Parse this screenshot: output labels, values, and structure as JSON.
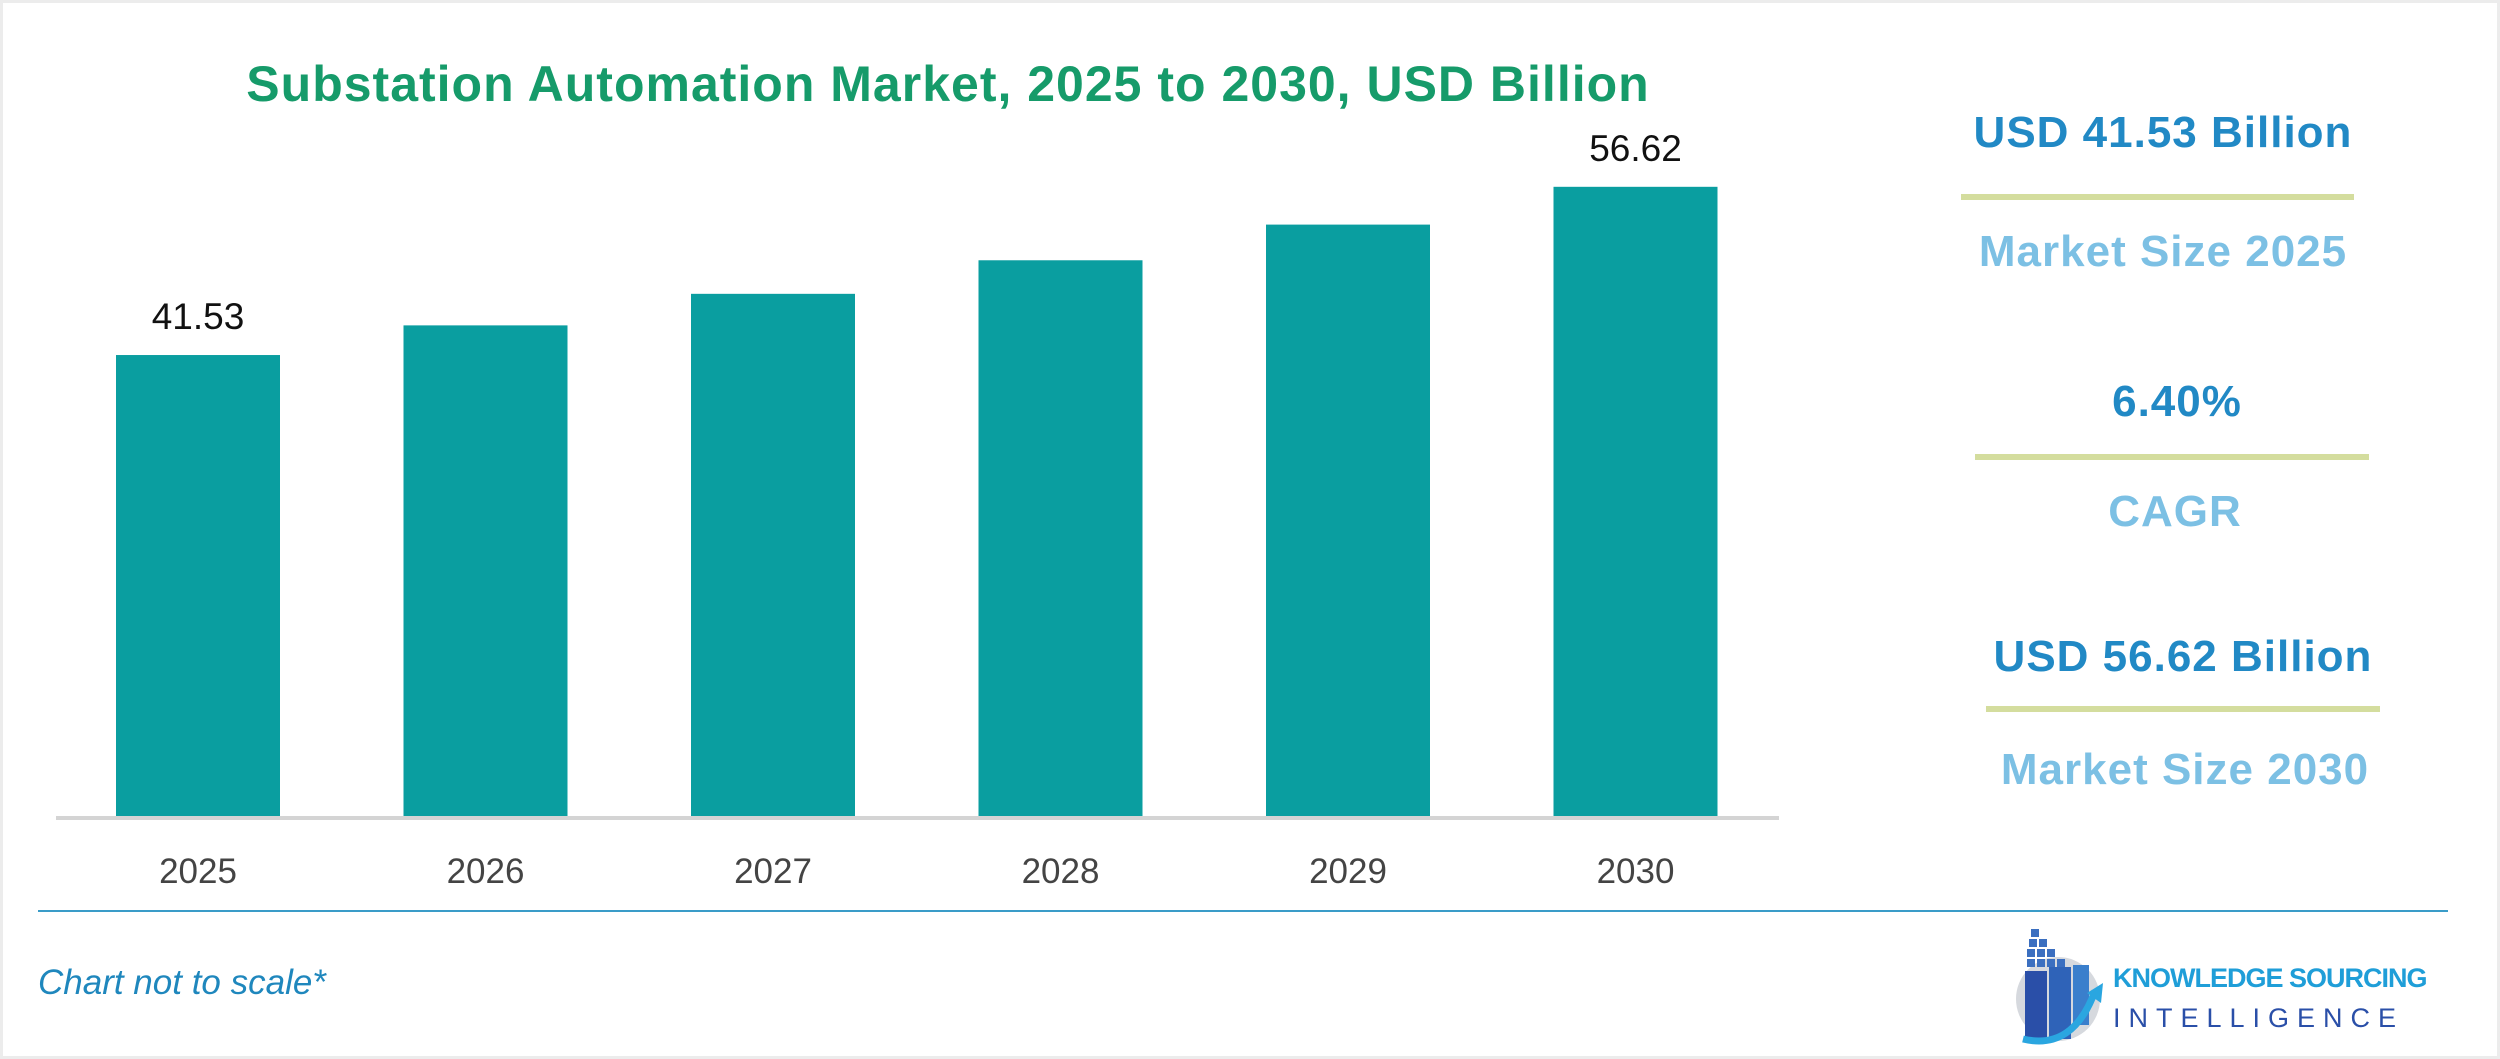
{
  "chart_data": {
    "type": "bar",
    "title": "Substation Automation Market, 2025 to 2030, USD Billion",
    "categories": [
      "2025",
      "2026",
      "2027",
      "2028",
      "2029",
      "2030"
    ],
    "values": [
      41.53,
      44.19,
      47.02,
      50.03,
      53.23,
      56.62
    ],
    "data_labels": [
      "41.53",
      "",
      "",
      "",
      "",
      "56.62"
    ],
    "xlabel": "",
    "ylabel": "",
    "ylim": [
      0,
      57.5
    ],
    "grid": false,
    "legend": "none",
    "bar_color": "#0a9ea0"
  },
  "kpis": [
    {
      "value": "USD 41.53 Billion",
      "label": "Market Size 2025"
    },
    {
      "value": "6.40%",
      "label": "CAGR"
    },
    {
      "value": "USD 56.62 Billion",
      "label": "Market Size 2030"
    }
  ],
  "footnote": "Chart not to scale*",
  "logo": {
    "line1": "KNOWLEDGE SOURCING",
    "line2": "INTELLIGENCE"
  },
  "colors": {
    "title": "#169b6a",
    "kpi_value": "#2189c5",
    "kpi_label": "#7cc0e4",
    "separator": "#d4dd9e"
  }
}
